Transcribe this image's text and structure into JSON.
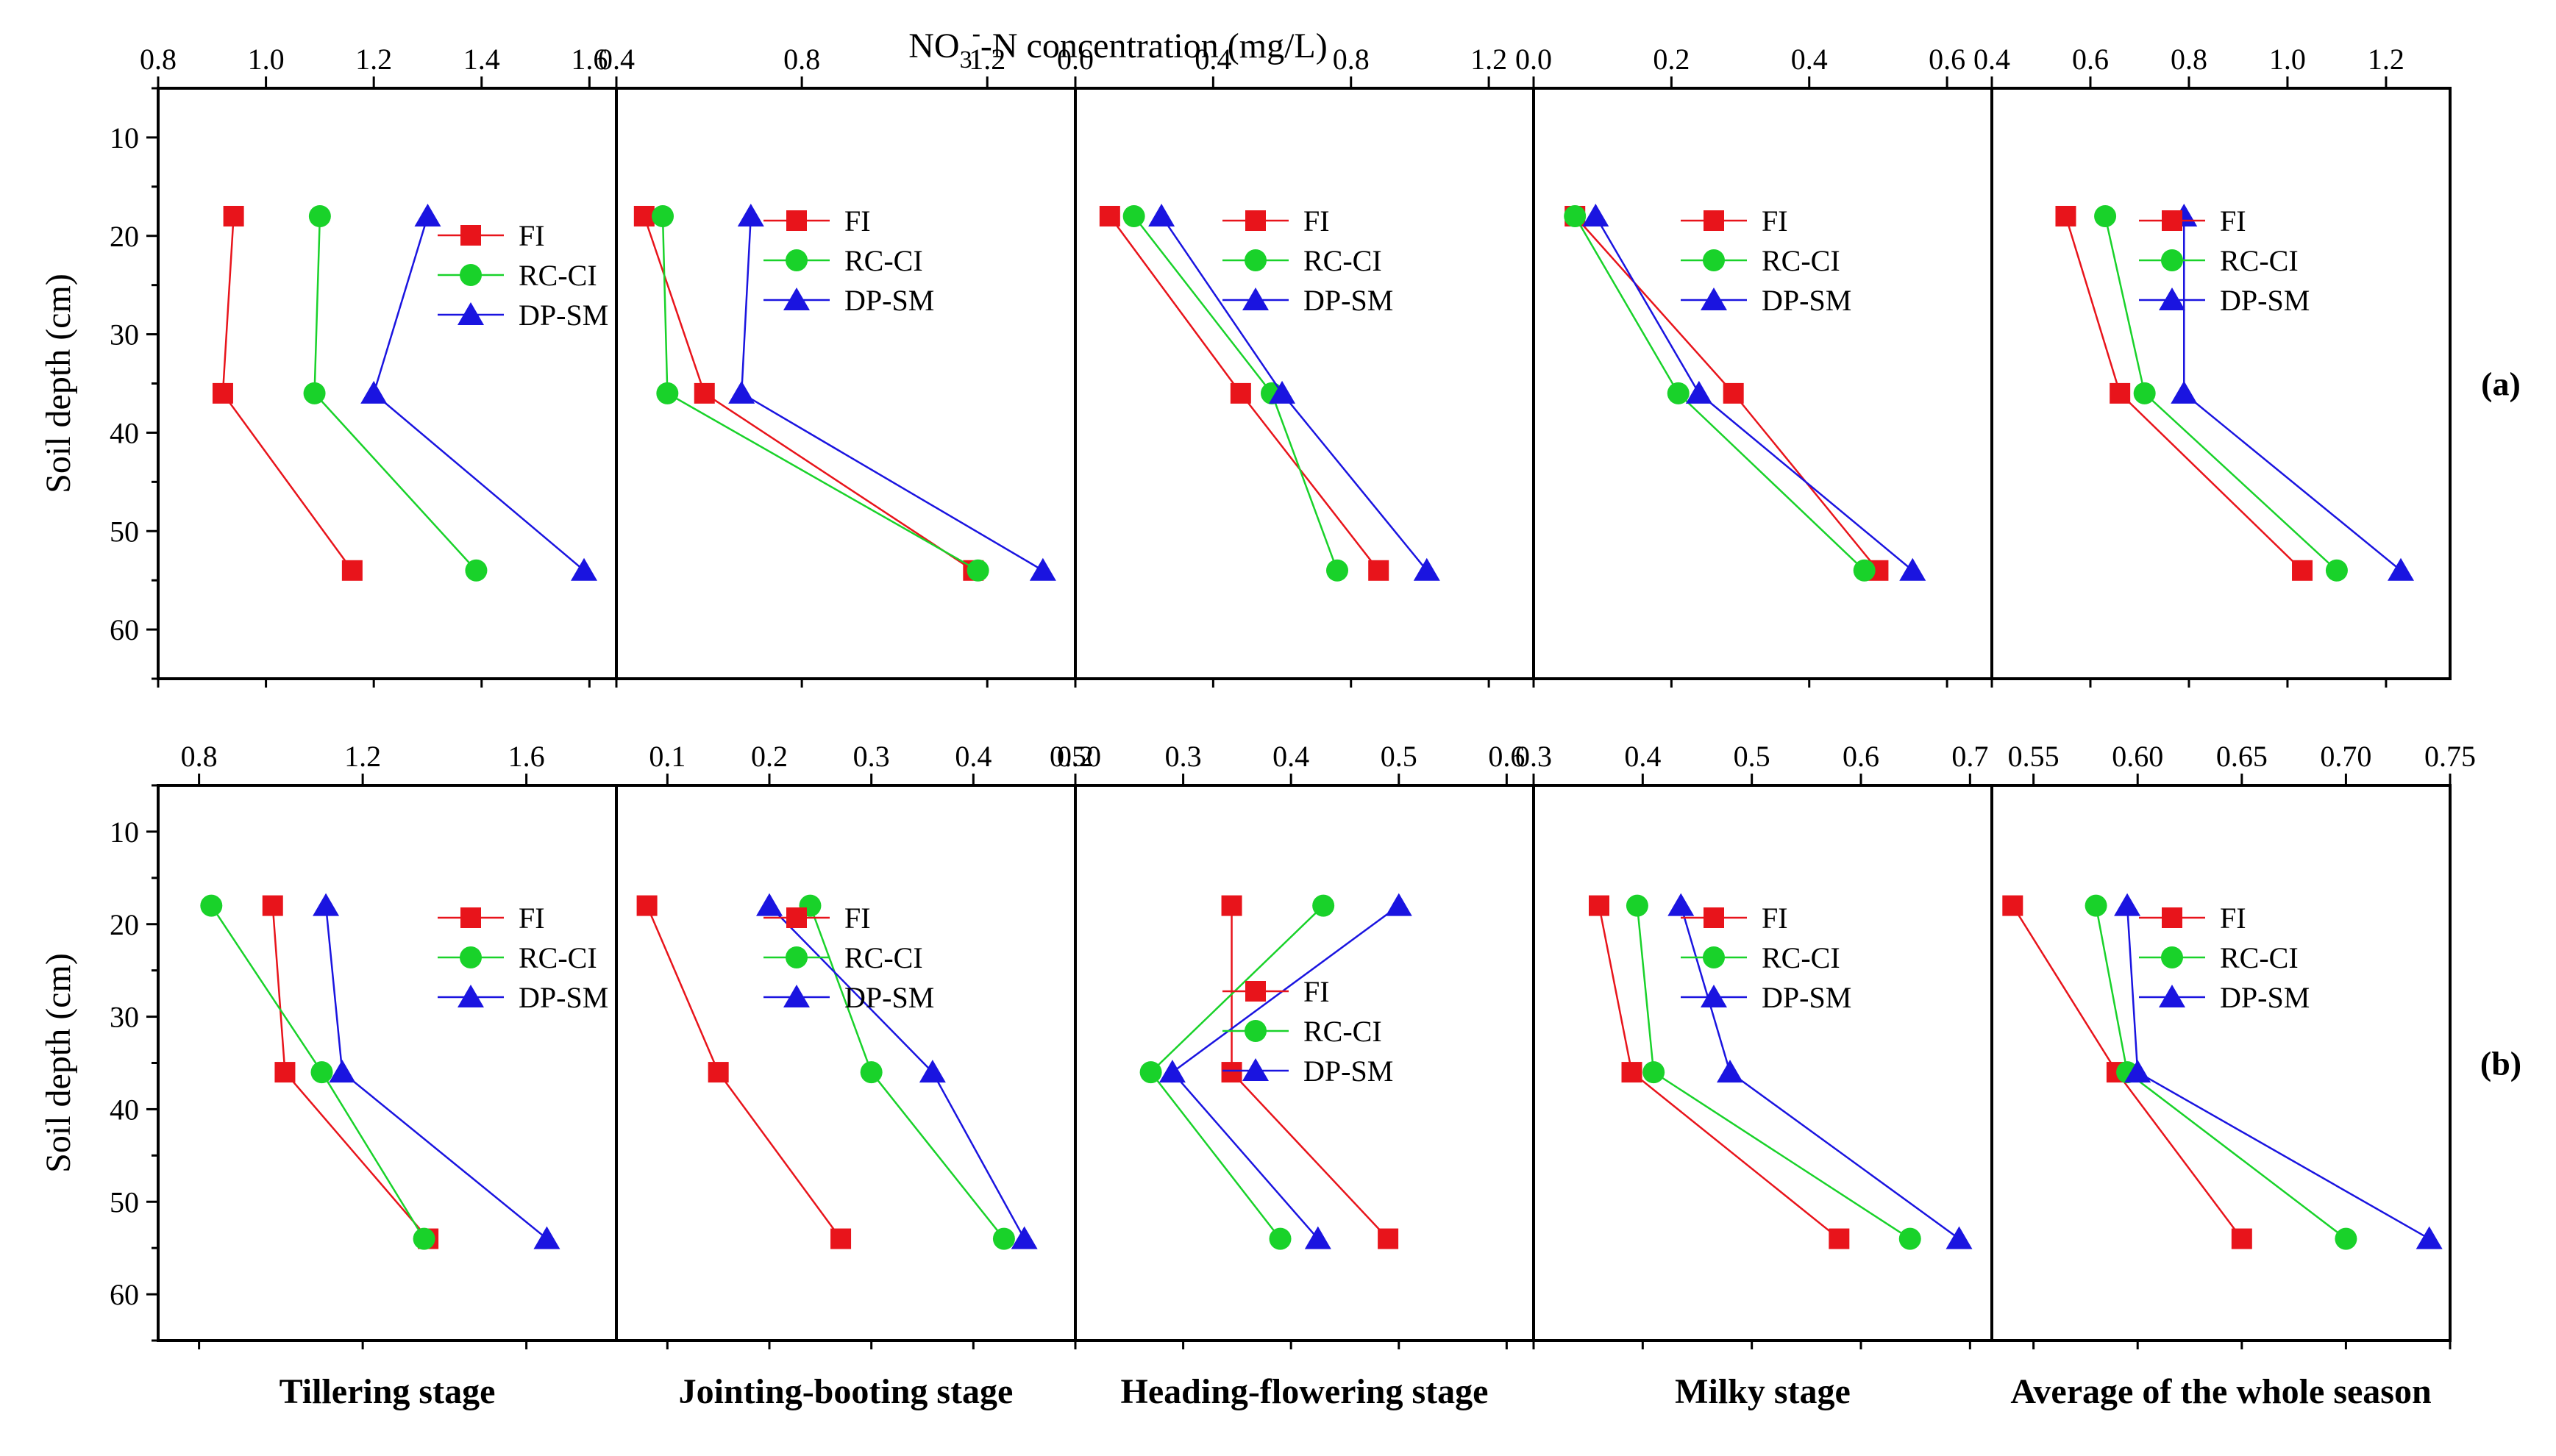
{
  "chart_data": {
    "type": "line",
    "title": "",
    "xlabel": "NO3--N concentration (mg/L)",
    "xlabel_parts": {
      "base": "NO",
      "sub": "3",
      "sup": "-",
      "rest": "-N concentration (mg/L)"
    },
    "ylabel": "Soil depth (cm)",
    "ylim": [
      65,
      5
    ],
    "yticks": [
      10,
      20,
      30,
      40,
      50,
      60
    ],
    "depths": [
      18,
      36,
      54
    ],
    "stages": [
      "Tillering stage",
      "Jointing-booting stage",
      "Heading-flowering stage",
      "Milky stage",
      "Average of the whole season"
    ],
    "legend_labels": [
      "FI",
      "RC-CI",
      "DP-SM"
    ],
    "colors": {
      "FI": "#e8141b",
      "RC-CI": "#19d22a",
      "DP-SM": "#1a14e0"
    },
    "rows": [
      {
        "label": "(a)",
        "panels": [
          {
            "stage": "Tillering stage",
            "xlim": [
              0.8,
              1.65
            ],
            "xticks": [
              0.8,
              1.0,
              1.2,
              1.4,
              1.6
            ],
            "tick_labels": [
              "0.8",
              "1.0",
              "1.2",
              "1.4",
              "1.6"
            ],
            "legend_position": "top-right",
            "series": [
              {
                "name": "FI",
                "values": [
                  0.94,
                  0.92,
                  1.16
                ]
              },
              {
                "name": "RC-CI",
                "values": [
                  1.1,
                  1.09,
                  1.39
                ]
              },
              {
                "name": "DP-SM",
                "values": [
                  1.3,
                  1.2,
                  1.59
                ]
              }
            ]
          },
          {
            "stage": "Jointing-booting stage",
            "xlim": [
              0.4,
              1.39
            ],
            "xticks": [
              0.4,
              0.8,
              1.2
            ],
            "tick_labels": [
              "0.4",
              "0.8",
              "1.2"
            ],
            "legend_position": "top-right",
            "series": [
              {
                "name": "FI",
                "values": [
                  0.46,
                  0.59,
                  1.17
                ]
              },
              {
                "name": "RC-CI",
                "values": [
                  0.5,
                  0.51,
                  1.18
                ]
              },
              {
                "name": "DP-SM",
                "values": [
                  0.69,
                  0.67,
                  1.32
                ]
              }
            ]
          },
          {
            "stage": "Heading-flowering stage",
            "xlim": [
              0.0,
              1.33
            ],
            "xticks": [
              0.0,
              0.4,
              0.8,
              1.2
            ],
            "tick_labels": [
              "0.0",
              "0.4",
              "0.8",
              "1.2"
            ],
            "legend_position": "top-right",
            "series": [
              {
                "name": "FI",
                "values": [
                  0.1,
                  0.48,
                  0.88
                ]
              },
              {
                "name": "RC-CI",
                "values": [
                  0.17,
                  0.57,
                  0.76
                ]
              },
              {
                "name": "DP-SM",
                "values": [
                  0.25,
                  0.6,
                  1.02
                ]
              }
            ]
          },
          {
            "stage": "Milky stage",
            "xlim": [
              0.0,
              0.665
            ],
            "xticks": [
              0.0,
              0.2,
              0.4,
              0.6
            ],
            "tick_labels": [
              "0.0",
              "0.2",
              "0.4",
              "0.6"
            ],
            "legend_position": "top-right",
            "series": [
              {
                "name": "FI",
                "values": [
                  0.06,
                  0.29,
                  0.5
                ]
              },
              {
                "name": "RC-CI",
                "values": [
                  0.06,
                  0.21,
                  0.48
                ]
              },
              {
                "name": "DP-SM",
                "values": [
                  0.09,
                  0.24,
                  0.55
                ]
              }
            ]
          },
          {
            "stage": "Average of the whole season",
            "xlim": [
              0.4,
              1.33
            ],
            "xticks": [
              0.4,
              0.6,
              0.8,
              1.0,
              1.2
            ],
            "tick_labels": [
              "0.4",
              "0.6",
              "0.8",
              "1.0",
              "1.2"
            ],
            "legend_position": "top-right",
            "series": [
              {
                "name": "FI",
                "values": [
                  0.55,
                  0.66,
                  1.03
                ]
              },
              {
                "name": "RC-CI",
                "values": [
                  0.63,
                  0.71,
                  1.1
                ]
              },
              {
                "name": "DP-SM",
                "values": [
                  0.79,
                  0.79,
                  1.23
                ]
              }
            ]
          }
        ]
      },
      {
        "label": "(b)",
        "panels": [
          {
            "stage": "Tillering stage",
            "xlim": [
              0.7,
              1.82
            ],
            "xticks": [
              0.8,
              1.2,
              1.6
            ],
            "tick_labels": [
              "0.8",
              "1.2",
              "1.6"
            ],
            "legend_position": "top-right",
            "series": [
              {
                "name": "FI",
                "values": [
                  0.98,
                  1.01,
                  1.36
                ]
              },
              {
                "name": "RC-CI",
                "values": [
                  0.83,
                  1.1,
                  1.35
                ]
              },
              {
                "name": "DP-SM",
                "values": [
                  1.11,
                  1.15,
                  1.65
                ]
              }
            ]
          },
          {
            "stage": "Jointing-booting stage",
            "xlim": [
              0.05,
              0.5
            ],
            "xticks": [
              0.1,
              0.2,
              0.3,
              0.4,
              0.5
            ],
            "tick_labels": [
              "0.1",
              "0.2",
              "0.3",
              "0.4",
              "0.50"
            ],
            "legend_position": "top-right",
            "series": [
              {
                "name": "FI",
                "values": [
                  0.08,
                  0.15,
                  0.27
                ]
              },
              {
                "name": "RC-CI",
                "values": [
                  0.24,
                  0.3,
                  0.43
                ]
              },
              {
                "name": "DP-SM",
                "values": [
                  0.2,
                  0.36,
                  0.45
                ]
              }
            ]
          },
          {
            "stage": "Heading-flowering stage",
            "xlim": [
              0.2,
              0.625
            ],
            "xticks": [
              0.2,
              0.3,
              0.4,
              0.5,
              0.6
            ],
            "tick_labels": [
              "0.2",
              "0.3",
              "0.4",
              "0.5",
              "0.6"
            ],
            "legend_position": "middle-right",
            "series": [
              {
                "name": "FI",
                "values": [
                  0.345,
                  0.345,
                  0.49
                ]
              },
              {
                "name": "RC-CI",
                "values": [
                  0.43,
                  0.27,
                  0.39
                ]
              },
              {
                "name": "DP-SM",
                "values": [
                  0.5,
                  0.29,
                  0.425
                ]
              }
            ]
          },
          {
            "stage": "Milky stage",
            "xlim": [
              0.3,
              0.72
            ],
            "xticks": [
              0.3,
              0.4,
              0.5,
              0.6,
              0.7
            ],
            "tick_labels": [
              "0.3",
              "0.4",
              "0.5",
              "0.6",
              "0.7"
            ],
            "legend_position": "top-right",
            "series": [
              {
                "name": "FI",
                "values": [
                  0.36,
                  0.39,
                  0.58
                ]
              },
              {
                "name": "RC-CI",
                "values": [
                  0.395,
                  0.41,
                  0.645
                ]
              },
              {
                "name": "DP-SM",
                "values": [
                  0.435,
                  0.48,
                  0.69
                ]
              }
            ]
          },
          {
            "stage": "Average of the whole season",
            "xlim": [
              0.53,
              0.75
            ],
            "xticks": [
              0.55,
              0.6,
              0.65,
              0.7,
              0.75
            ],
            "tick_labels": [
              "0.55",
              "0.60",
              "0.65",
              "0.70",
              "0.75"
            ],
            "legend_position": "top-right",
            "series": [
              {
                "name": "FI",
                "values": [
                  0.54,
                  0.59,
                  0.65
                ]
              },
              {
                "name": "RC-CI",
                "values": [
                  0.58,
                  0.595,
                  0.7
                ]
              },
              {
                "name": "DP-SM",
                "values": [
                  0.595,
                  0.6,
                  0.74
                ]
              }
            ]
          }
        ]
      }
    ]
  }
}
